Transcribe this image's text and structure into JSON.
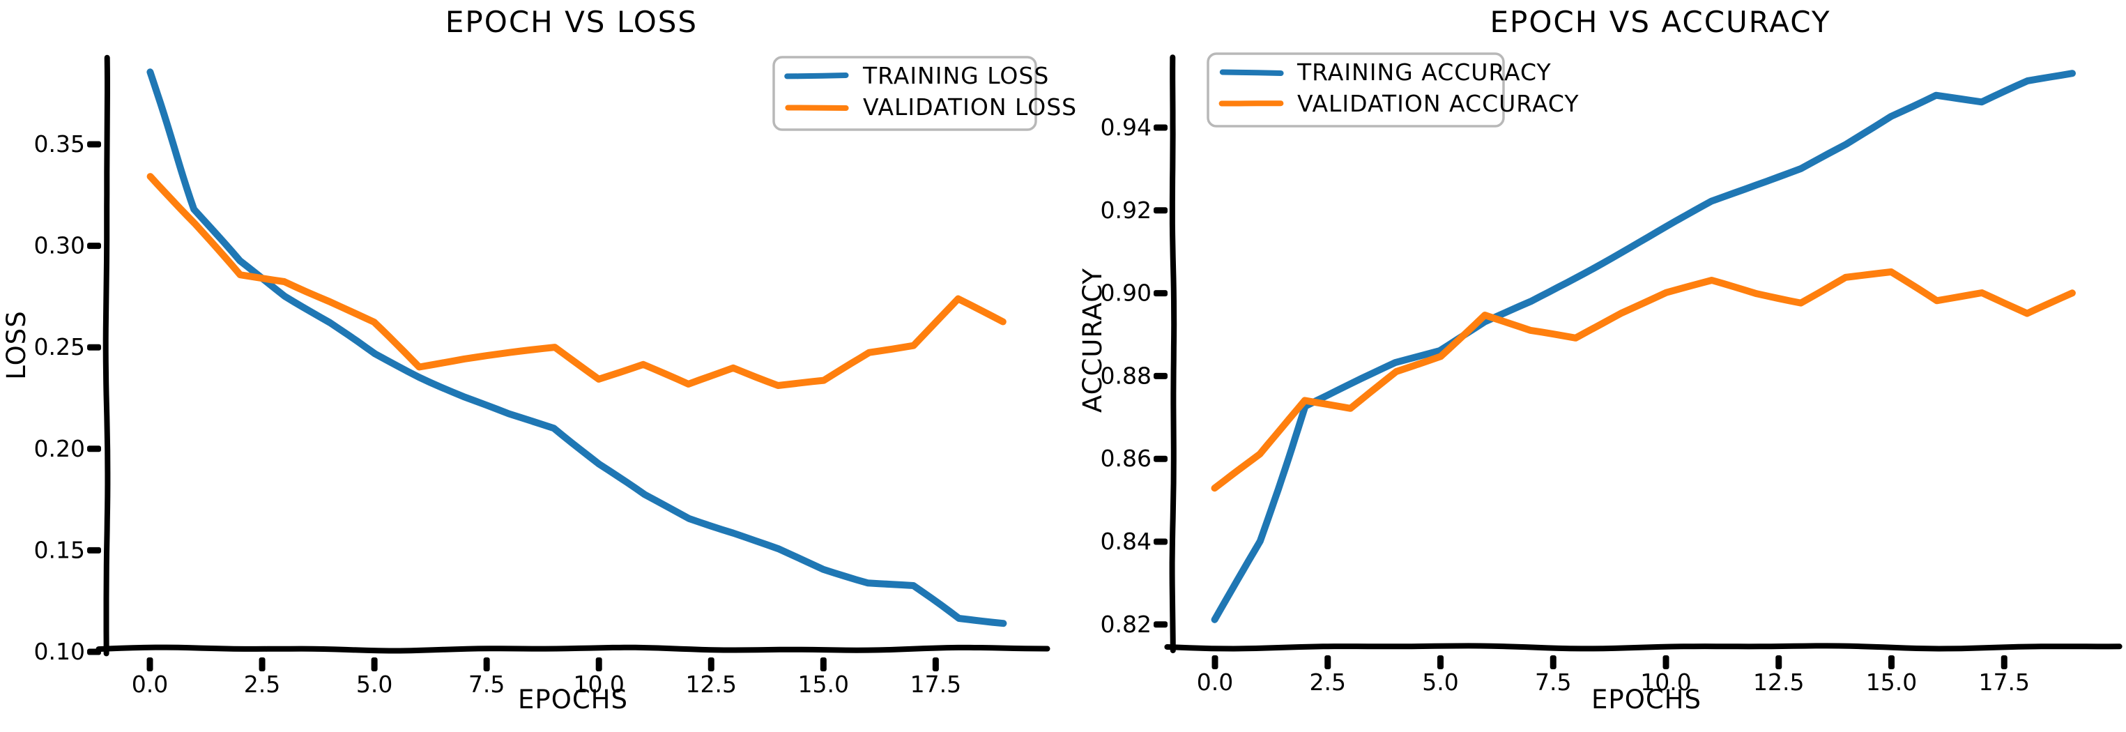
{
  "figure": {
    "background": "#ffffff",
    "text_color": "#000000",
    "accent_blue": "#1f77b4",
    "accent_orange": "#ff7f0e"
  },
  "chart_data": [
    {
      "type": "line",
      "title": "EPOCH VS LOSS",
      "xlabel": "EPOCHS",
      "ylabel": "LOSS",
      "legend_position": "upper right",
      "grid": false,
      "x": [
        0,
        1,
        2,
        3,
        4,
        5,
        6,
        7,
        8,
        9,
        10,
        11,
        12,
        13,
        14,
        15,
        16,
        17,
        18,
        19
      ],
      "series": [
        {
          "name": "TRAINING LOSS",
          "color": "#1f77b4",
          "values": [
            0.386,
            0.318,
            0.292,
            0.275,
            0.262,
            0.247,
            0.236,
            0.226,
            0.217,
            0.21,
            0.192,
            0.177,
            0.166,
            0.159,
            0.151,
            0.141,
            0.134,
            0.132,
            0.116,
            0.114
          ]
        },
        {
          "name": "VALIDATION LOSS",
          "color": "#ff7f0e",
          "values": [
            0.334,
            0.311,
            0.286,
            0.283,
            0.273,
            0.262,
            0.24,
            0.244,
            0.247,
            0.25,
            0.235,
            0.242,
            0.232,
            0.24,
            0.231,
            0.233,
            0.247,
            0.251,
            0.274,
            0.263
          ]
        }
      ],
      "xticks": [
        0.0,
        2.5,
        5.0,
        7.5,
        10.0,
        12.5,
        15.0,
        17.5
      ],
      "xtick_labels": [
        "0.0",
        "2.5",
        "5.0",
        "7.5",
        "10.0",
        "12.5",
        "15.0",
        "17.5"
      ],
      "yticks": [
        0.35,
        0.3,
        0.25,
        0.2,
        0.15,
        0.1
      ],
      "ytick_labels": [
        "0.35",
        "0.30",
        "0.25",
        "0.20",
        "0.15",
        "0.10"
      ],
      "xlim": [
        -0.96,
        19.97
      ],
      "ylim": [
        0.101,
        0.392
      ]
    },
    {
      "type": "line",
      "title": "EPOCH VS ACCURACY",
      "xlabel": "EPOCHS",
      "ylabel": "ACCURACY",
      "legend_position": "upper left",
      "grid": false,
      "x": [
        0,
        1,
        2,
        3,
        4,
        5,
        6,
        7,
        8,
        9,
        10,
        11,
        12,
        13,
        14,
        15,
        16,
        17,
        18,
        19
      ],
      "series": [
        {
          "name": "TRAINING ACCURACY",
          "color": "#1f77b4",
          "values": [
            0.821,
            0.84,
            0.873,
            0.878,
            0.883,
            0.886,
            0.893,
            0.898,
            0.904,
            0.91,
            0.916,
            0.922,
            0.926,
            0.93,
            0.936,
            0.943,
            0.948,
            0.946,
            0.951,
            0.953
          ]
        },
        {
          "name": "VALIDATION ACCURACY",
          "color": "#ff7f0e",
          "values": [
            0.853,
            0.861,
            0.874,
            0.872,
            0.881,
            0.885,
            0.895,
            0.891,
            0.889,
            0.895,
            0.9,
            0.903,
            0.9,
            0.898,
            0.904,
            0.905,
            0.898,
            0.9,
            0.895,
            0.9
          ]
        }
      ],
      "xticks": [
        0.0,
        2.5,
        5.0,
        7.5,
        10.0,
        12.5,
        15.0,
        17.5
      ],
      "xtick_labels": [
        "0.0",
        "2.5",
        "5.0",
        "7.5",
        "10.0",
        "12.5",
        "15.0",
        "17.5"
      ],
      "yticks": [
        0.94,
        0.92,
        0.9,
        0.88,
        0.86,
        0.84,
        0.82
      ],
      "ytick_labels": [
        "0.94",
        "0.92",
        "0.90",
        "0.88",
        "0.86",
        "0.84",
        "0.82"
      ],
      "xlim": [
        -0.93,
        20.05
      ],
      "ylim": [
        0.8146,
        0.9565
      ]
    }
  ]
}
